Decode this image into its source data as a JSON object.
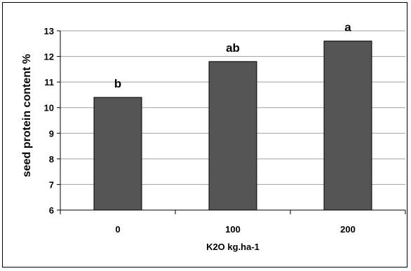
{
  "chart_data": {
    "type": "bar",
    "categories": [
      "0",
      "100",
      "200"
    ],
    "values": [
      10.4,
      11.8,
      12.6
    ],
    "data_labels": [
      "b",
      "ab",
      "a"
    ],
    "title": "",
    "xlabel": "K2O kg.ha-1",
    "ylabel": "seed protein content %",
    "ylim": [
      6,
      13
    ],
    "yticks": [
      "6",
      "7",
      "8",
      "9",
      "10",
      "11",
      "12",
      "13"
    ],
    "grid": true,
    "bar_color": "#555555"
  }
}
